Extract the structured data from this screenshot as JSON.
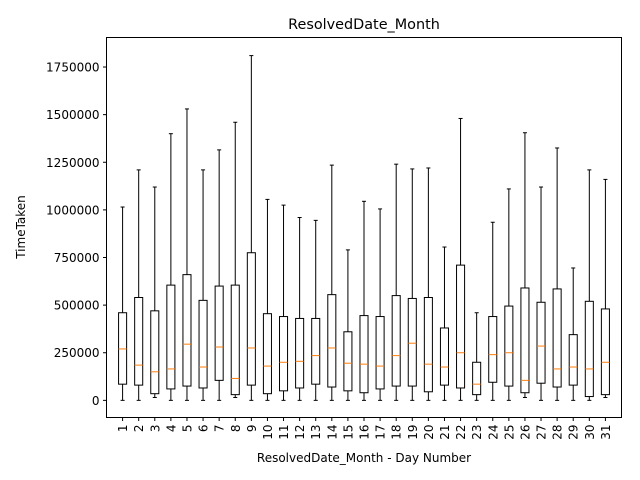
{
  "chart_data": {
    "type": "box",
    "title": "ResolvedDate_Month",
    "xlabel": "ResolvedDate_Month - Day Number",
    "ylabel": "TimeTaken",
    "ylim": [
      -90000,
      1905000
    ],
    "yticks": [
      0,
      250000,
      500000,
      750000,
      1000000,
      1250000,
      1500000,
      1750000
    ],
    "ytick_labels": [
      "0",
      "250000",
      "500000",
      "750000",
      "1000000",
      "1250000",
      "1500000",
      "1750000"
    ],
    "grid": false,
    "colors": {
      "box": "#000000",
      "median": "#ff7f0e"
    },
    "categories": [
      "1",
      "2",
      "3",
      "4",
      "5",
      "6",
      "7",
      "8",
      "9",
      "10",
      "11",
      "12",
      "13",
      "14",
      "15",
      "16",
      "17",
      "18",
      "19",
      "20",
      "21",
      "22",
      "23",
      "24",
      "25",
      "26",
      "27",
      "28",
      "29",
      "30",
      "31"
    ],
    "boxes": [
      {
        "whislo": 0,
        "q1": 85000,
        "med": 270000,
        "q3": 460000,
        "whishi": 1015000
      },
      {
        "whislo": 0,
        "q1": 80000,
        "med": 185000,
        "q3": 540000,
        "whishi": 1210000
      },
      {
        "whislo": 15000,
        "q1": 35000,
        "med": 150000,
        "q3": 470000,
        "whishi": 1120000
      },
      {
        "whislo": 0,
        "q1": 60000,
        "med": 165000,
        "q3": 605000,
        "whishi": 1400000
      },
      {
        "whislo": 0,
        "q1": 75000,
        "med": 295000,
        "q3": 660000,
        "whishi": 1530000
      },
      {
        "whislo": 0,
        "q1": 65000,
        "med": 175000,
        "q3": 525000,
        "whishi": 1210000
      },
      {
        "whislo": 0,
        "q1": 105000,
        "med": 280000,
        "q3": 600000,
        "whishi": 1315000
      },
      {
        "whislo": 15000,
        "q1": 30000,
        "med": 115000,
        "q3": 605000,
        "whishi": 1460000
      },
      {
        "whislo": 0,
        "q1": 80000,
        "med": 275000,
        "q3": 775000,
        "whishi": 1810000
      },
      {
        "whislo": 0,
        "q1": 35000,
        "med": 180000,
        "q3": 455000,
        "whishi": 1055000
      },
      {
        "whislo": 0,
        "q1": 50000,
        "med": 200000,
        "q3": 440000,
        "whishi": 1025000
      },
      {
        "whislo": 0,
        "q1": 65000,
        "med": 205000,
        "q3": 430000,
        "whishi": 960000
      },
      {
        "whislo": 0,
        "q1": 85000,
        "med": 235000,
        "q3": 430000,
        "whishi": 945000
      },
      {
        "whislo": 0,
        "q1": 70000,
        "med": 275000,
        "q3": 555000,
        "whishi": 1235000
      },
      {
        "whislo": 0,
        "q1": 50000,
        "med": 195000,
        "q3": 360000,
        "whishi": 790000
      },
      {
        "whislo": 0,
        "q1": 40000,
        "med": 190000,
        "q3": 445000,
        "whishi": 1045000
      },
      {
        "whislo": 0,
        "q1": 60000,
        "med": 180000,
        "q3": 440000,
        "whishi": 1005000
      },
      {
        "whislo": 0,
        "q1": 75000,
        "med": 235000,
        "q3": 550000,
        "whishi": 1240000
      },
      {
        "whislo": 0,
        "q1": 75000,
        "med": 300000,
        "q3": 535000,
        "whishi": 1215000
      },
      {
        "whislo": 0,
        "q1": 45000,
        "med": 190000,
        "q3": 540000,
        "whishi": 1220000
      },
      {
        "whislo": 0,
        "q1": 80000,
        "med": 175000,
        "q3": 380000,
        "whishi": 805000
      },
      {
        "whislo": 0,
        "q1": 65000,
        "med": 250000,
        "q3": 710000,
        "whishi": 1480000
      },
      {
        "whislo": 0,
        "q1": 30000,
        "med": 85000,
        "q3": 200000,
        "whishi": 460000
      },
      {
        "whislo": 0,
        "q1": 95000,
        "med": 240000,
        "q3": 440000,
        "whishi": 935000
      },
      {
        "whislo": 0,
        "q1": 75000,
        "med": 250000,
        "q3": 495000,
        "whishi": 1110000
      },
      {
        "whislo": 15000,
        "q1": 40000,
        "med": 105000,
        "q3": 590000,
        "whishi": 1405000
      },
      {
        "whislo": 0,
        "q1": 90000,
        "med": 285000,
        "q3": 515000,
        "whishi": 1120000
      },
      {
        "whislo": 0,
        "q1": 70000,
        "med": 165000,
        "q3": 585000,
        "whishi": 1325000
      },
      {
        "whislo": 0,
        "q1": 80000,
        "med": 175000,
        "q3": 345000,
        "whishi": 695000
      },
      {
        "whislo": 0,
        "q1": 20000,
        "med": 165000,
        "q3": 520000,
        "whishi": 1210000
      },
      {
        "whislo": 15000,
        "q1": 30000,
        "med": 200000,
        "q3": 480000,
        "whishi": 1160000
      }
    ]
  }
}
